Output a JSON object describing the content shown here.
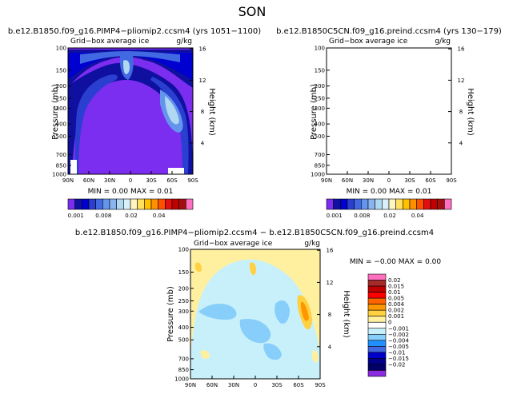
{
  "page_title": "SON",
  "panels": [
    {
      "id": "p1",
      "title": "b.e12.B1850.f09_g16.PIMP4−pliomip2.ccsm4 (yrs 1051−1100)",
      "subtitle": "Grid−box average ice",
      "units": "g/kg",
      "ylabel": "Pressure (mb)",
      "y2label": "Height (km)",
      "stats": "MIN =   0.00    MAX =   0.01"
    },
    {
      "id": "p2",
      "title": "b.e12.B1850C5CN.f09_g16.preind.ccsm4 (yrs 130−179)",
      "subtitle": "Grid−box average ice",
      "units": "g/kg",
      "ylabel": "Pressure (mb)",
      "y2label": "Height (km)",
      "stats": "MIN =   0.00    MAX =   0.01"
    },
    {
      "id": "p3",
      "title": "b.e12.B1850.f09_g16.PIMP4−pliomip2.ccsm4 − b.e12.B1850C5CN.f09_g16.preind.ccsm4",
      "subtitle": "Grid−box average ice",
      "units": "g/kg",
      "ylabel": "Pressure (mb)",
      "y2label": "Height (km)",
      "stats": "MIN =  −0.00    MAX =   0.00"
    }
  ],
  "axes": {
    "x_ticks": [
      "90N",
      "60N",
      "30N",
      "0",
      "30S",
      "60S",
      "90S"
    ],
    "p_ticks": [
      "100",
      "150",
      "200",
      "250",
      "300",
      "400",
      "500",
      "700",
      "850",
      "1000"
    ],
    "h_ticks": [
      "16",
      "12",
      "8",
      "4"
    ]
  },
  "colorbar_top": {
    "colors": [
      "#7b2df0",
      "#1010a0",
      "#0000d0",
      "#2a3fd0",
      "#4169e1",
      "#6495ed",
      "#8ab4f0",
      "#b0d8f0",
      "#d8f0f8",
      "#fff5c0",
      "#ffe060",
      "#ffc000",
      "#ff9000",
      "#ff5000",
      "#e01010",
      "#c00000",
      "#a01010",
      "#ff70c0"
    ],
    "labels": [
      "0.001",
      "0.008",
      "0.02",
      "0.04"
    ]
  },
  "colorbar_diff": {
    "colors": [
      "#ff70c0",
      "#a52a2a",
      "#c00000",
      "#ff0000",
      "#ff6400",
      "#ff9600",
      "#ffd040",
      "#fff0a0",
      "#ffffff",
      "#c8f0fa",
      "#87cefa",
      "#1e90ff",
      "#4169e1",
      "#0000cd",
      "#00008b",
      "#000066",
      "#8a2be2"
    ],
    "labels": [
      "0.02",
      "0.015",
      "0.01",
      "0.005",
      "0.004",
      "0.002",
      "0.001",
      "0",
      "−0.001",
      "−0.002",
      "−0.004",
      "−0.005",
      "−0.01",
      "−0.015",
      "−0.02"
    ]
  },
  "chart_data": [
    {
      "type": "heatmap",
      "panel": "p1",
      "description_of_field": "zonal-mean cloud ice vs latitude and pressure",
      "x": [
        "90N",
        "60N",
        "30N",
        "0",
        "30S",
        "60S",
        "90S"
      ],
      "y": [
        100,
        150,
        200,
        250,
        300,
        400,
        500,
        700,
        850,
        1000
      ],
      "min": 0.0,
      "max": 0.01,
      "units": "g/kg",
      "y_scale": "log"
    },
    {
      "type": "heatmap",
      "panel": "p2",
      "x": [
        "90N",
        "60N",
        "30N",
        "0",
        "30S",
        "60S",
        "90S"
      ],
      "y": [
        100,
        150,
        200,
        250,
        300,
        400,
        500,
        700,
        850,
        1000
      ],
      "min": 0.0,
      "max": 0.01,
      "units": "g/kg",
      "y_scale": "log"
    },
    {
      "type": "heatmap",
      "panel": "p3",
      "x": [
        "90N",
        "60N",
        "30N",
        "0",
        "30S",
        "60S",
        "90S"
      ],
      "y": [
        100,
        150,
        200,
        250,
        300,
        400,
        500,
        700,
        850,
        1000
      ],
      "min": -0.0,
      "max": 0.0,
      "units": "g/kg",
      "y_scale": "log"
    }
  ]
}
